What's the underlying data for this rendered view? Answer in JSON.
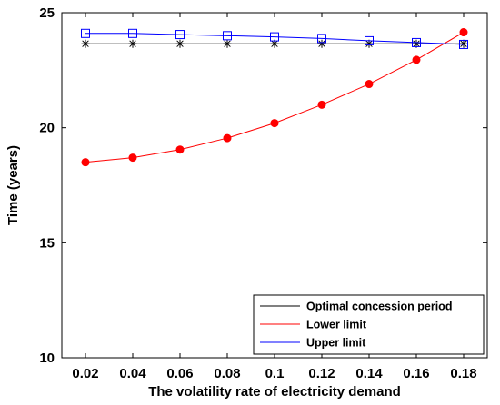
{
  "chart_data": {
    "type": "line",
    "title": "",
    "xlabel": "The volatility rate of electricity demand",
    "ylabel": "Time (years)",
    "x": [
      0.02,
      0.04,
      0.06,
      0.08,
      0.1,
      0.12,
      0.14,
      0.16,
      0.18
    ],
    "x_tick_labels": [
      "0.02",
      "0.04",
      "0.06",
      "0.08",
      "0.1",
      "0.12",
      "0.14",
      "0.16",
      "0.18"
    ],
    "y_ticks": [
      10,
      15,
      20,
      25
    ],
    "xlim": [
      0.01,
      0.19
    ],
    "ylim": [
      10,
      25
    ],
    "grid": false,
    "legend_position": "bottom-right",
    "series": [
      {
        "name": "Optimal concession period",
        "color": "#000000",
        "marker": "asterisk",
        "values": [
          23.65,
          23.65,
          23.65,
          23.65,
          23.65,
          23.65,
          23.65,
          23.65,
          23.65
        ]
      },
      {
        "name": "Lower limit",
        "color": "#ff0000",
        "marker": "filled-circle",
        "values": [
          18.5,
          18.7,
          19.05,
          19.55,
          20.2,
          21.0,
          21.9,
          22.95,
          24.15
        ]
      },
      {
        "name": "Upper limit",
        "color": "#0000ff",
        "marker": "open-square",
        "values": [
          24.1,
          24.1,
          24.05,
          24.0,
          23.95,
          23.88,
          23.78,
          23.7,
          23.62
        ]
      }
    ]
  }
}
